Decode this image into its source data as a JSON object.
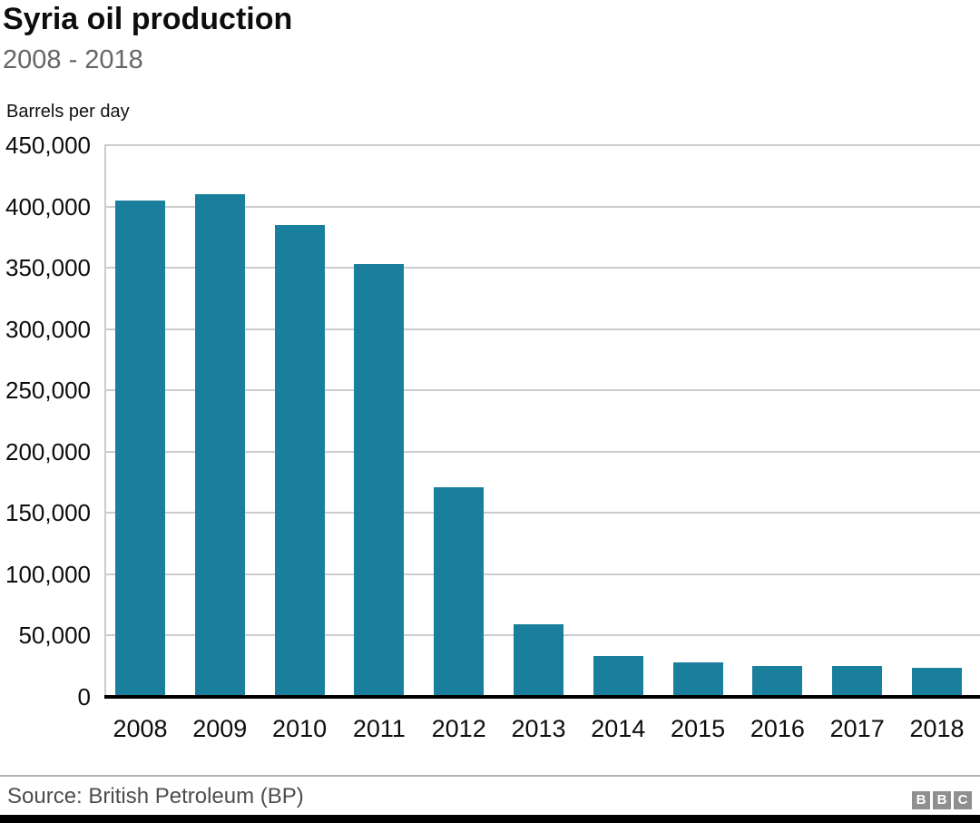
{
  "header": {
    "title": "Syria oil production",
    "subtitle": "2008 - 2018",
    "unit_label": "Barrels per day"
  },
  "footer": {
    "source": "Source: British Petroleum (BP)",
    "logo_letters": [
      "B",
      "B",
      "C"
    ]
  },
  "colors": {
    "bar": "#1a7f9d",
    "grid": "#cccccc",
    "axis_line": "#000000",
    "title": "#0d0d0d",
    "subtitle": "#666666",
    "source_text": "#4d4d4d",
    "logo_block": "#8f8f8f",
    "background": "#ffffff"
  },
  "chart_data": {
    "type": "bar",
    "title": "Syria oil production",
    "subtitle": "2008 - 2018",
    "xlabel": "",
    "ylabel": "Barrels per day",
    "categories": [
      "2008",
      "2009",
      "2010",
      "2011",
      "2012",
      "2013",
      "2014",
      "2015",
      "2016",
      "2017",
      "2018"
    ],
    "values": [
      405000,
      410000,
      385000,
      353000,
      171000,
      59000,
      33000,
      28000,
      25000,
      25000,
      24000
    ],
    "ylim": [
      0,
      450000
    ],
    "ytick_interval": 50000,
    "ytick_labels": [
      "450,000",
      "400,000",
      "350,000",
      "300,000",
      "250,000",
      "200,000",
      "150,000",
      "100,000",
      "50,000",
      "0"
    ],
    "grid": true,
    "legend_position": "none",
    "source": "Source: British Petroleum (BP)"
  }
}
